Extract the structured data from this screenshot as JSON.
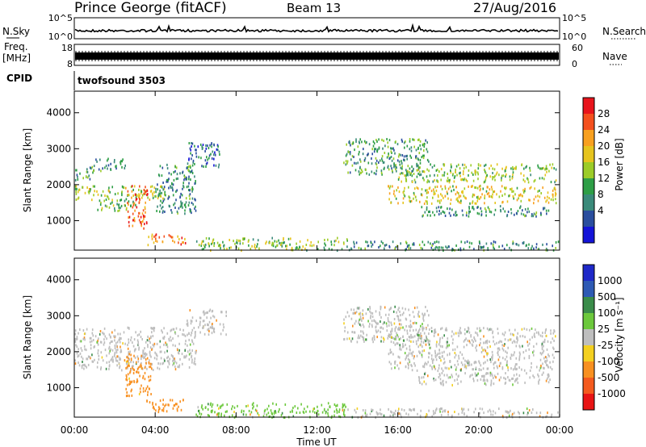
{
  "header": {
    "title": "Prince George (fitACF)",
    "beam": "Beam 13",
    "date": "27/Aug/2016"
  },
  "top_strip": {
    "nsky_label": "N.Sky",
    "nsky_ticks": [
      "10^5",
      "10^0"
    ],
    "nsearch_label": "N.Search",
    "nsearch_ticks": [
      "10^5",
      "10^0"
    ],
    "freq_label": [
      "Freq.",
      "[MHz]"
    ],
    "freq_ticks": [
      "18",
      "8"
    ],
    "nave_label": "Nave",
    "nave_ticks": [
      "60",
      "0"
    ],
    "cpid_label": "CPID",
    "cpid_value": "twofsound 3503"
  },
  "chart_data": [
    {
      "type": "heatmap",
      "name": "power-panel",
      "ylabel": "Slant Range [km]",
      "yticks": [
        "4000",
        "3000",
        "2000",
        "1000"
      ],
      "ylim": [
        180,
        4600
      ],
      "xlim_hours": [
        0,
        24
      ],
      "colorbar": {
        "label": "Power [dB]",
        "ticks": [
          "28",
          "24",
          "20",
          "16",
          "12",
          "8",
          "4"
        ],
        "colors": [
          "#e8141c",
          "#f4501e",
          "#f8a020",
          "#e6c41e",
          "#9ccc28",
          "#2e9e46",
          "#3a8a7a",
          "#2a4e9e",
          "#1414d8"
        ]
      },
      "regions": [
        {
          "t": [
            0.0,
            0.9
          ],
          "r": [
            2150,
            2550
          ],
          "v": 10
        },
        {
          "t": [
            0.9,
            2.5
          ],
          "r": [
            2400,
            2750
          ],
          "v": 8
        },
        {
          "t": [
            0.0,
            4.5
          ],
          "r": [
            1600,
            2000
          ],
          "v": 16
        },
        {
          "t": [
            1.0,
            3.2
          ],
          "r": [
            1300,
            1600
          ],
          "v": 12
        },
        {
          "t": [
            2.6,
            3.6
          ],
          "r": [
            800,
            2000
          ],
          "v": 26
        },
        {
          "t": [
            3.6,
            5.5
          ],
          "r": [
            350,
            650
          ],
          "v": 24
        },
        {
          "t": [
            4.0,
            6.0
          ],
          "r": [
            1200,
            2600
          ],
          "v": 8
        },
        {
          "t": [
            5.5,
            7.2
          ],
          "r": [
            2500,
            3200
          ],
          "v": 6
        },
        {
          "t": [
            6.0,
            13.5
          ],
          "r": [
            200,
            550
          ],
          "v": 14
        },
        {
          "t": [
            13.5,
            24.0
          ],
          "r": [
            200,
            450
          ],
          "v": 8
        },
        {
          "t": [
            13.3,
            17.5
          ],
          "r": [
            2300,
            3300
          ],
          "v": 10
        },
        {
          "t": [
            16.0,
            23.8
          ],
          "r": [
            2100,
            2600
          ],
          "v": 14
        },
        {
          "t": [
            15.5,
            23.8
          ],
          "r": [
            1500,
            2000
          ],
          "v": 18
        },
        {
          "t": [
            17.0,
            23.5
          ],
          "r": [
            1150,
            1450
          ],
          "v": 8
        }
      ]
    },
    {
      "type": "heatmap",
      "name": "velocity-panel",
      "ylabel": "Slant Range [km]",
      "yticks": [
        "4000",
        "3000",
        "2000",
        "1000"
      ],
      "ylim": [
        180,
        4600
      ],
      "xlim_hours": [
        0,
        24
      ],
      "xticks": [
        "00:00",
        "04:00",
        "08:00",
        "12:00",
        "16:00",
        "20:00",
        "00:00"
      ],
      "xlabel": "Time UT",
      "colorbar": {
        "label": "Velocity [m s⁻¹]",
        "ticks": [
          "1000",
          "500",
          "100",
          "25",
          "-25",
          "-100",
          "-500",
          "-1000"
        ],
        "colors": [
          "#1e28c8",
          "#2e5ab4",
          "#3a8c4a",
          "#6cc83c",
          "#bebebe",
          "#f4d020",
          "#f89020",
          "#f45a1e",
          "#e81414"
        ]
      },
      "regions": [
        {
          "t": [
            0.0,
            6.0
          ],
          "r": [
            1500,
            2700
          ],
          "v": 0
        },
        {
          "t": [
            2.5,
            3.8
          ],
          "r": [
            800,
            2000
          ],
          "v": -250
        },
        {
          "t": [
            3.5,
            5.5
          ],
          "r": [
            350,
            700
          ],
          "v": -250
        },
        {
          "t": [
            5.5,
            7.5
          ],
          "r": [
            2500,
            3200
          ],
          "v": 0
        },
        {
          "t": [
            6.0,
            13.5
          ],
          "r": [
            200,
            600
          ],
          "v": 30
        },
        {
          "t": [
            13.5,
            24.0
          ],
          "r": [
            200,
            450
          ],
          "v": 0
        },
        {
          "t": [
            13.3,
            17.5
          ],
          "r": [
            2300,
            3300
          ],
          "v": 0
        },
        {
          "t": [
            15.5,
            23.8
          ],
          "r": [
            1500,
            2700
          ],
          "v": 0
        },
        {
          "t": [
            17.0,
            23.5
          ],
          "r": [
            1100,
            1450
          ],
          "v": 0
        }
      ]
    }
  ]
}
